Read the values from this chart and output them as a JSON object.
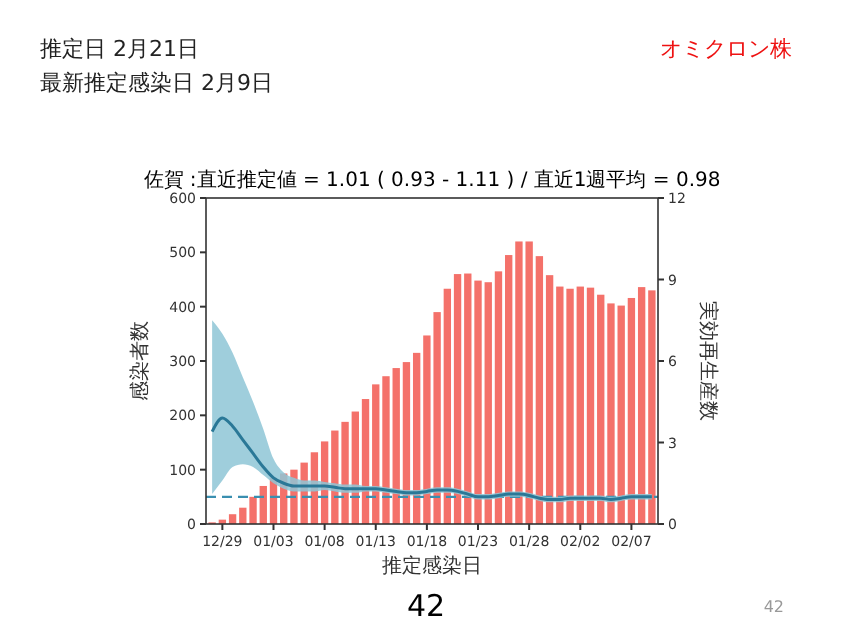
{
  "chart_data": {
    "type": "bar",
    "title": "佐賀 :直近推定値 = 1.01 ( 0.93 - 1.11 ) / 直近1週平均 = 0.98",
    "xlabel": "推定感染日",
    "ylabel": "感染者数",
    "y2label": "実効再生産数",
    "categories": [
      null,
      "12/29",
      null,
      null,
      null,
      null,
      "01/03",
      null,
      null,
      null,
      null,
      "01/08",
      null,
      null,
      null,
      null,
      "01/13",
      null,
      null,
      null,
      null,
      "01/18",
      null,
      null,
      null,
      null,
      "01/23",
      null,
      null,
      null,
      null,
      "01/28",
      null,
      null,
      null,
      null,
      "02/02",
      null,
      null,
      null,
      null,
      "02/07",
      null,
      null
    ],
    "series": [
      {
        "color": "#f4716a",
        "values": [
          3,
          8,
          18,
          30,
          50,
          70,
          85,
          93,
          100,
          113,
          132,
          152,
          172,
          188,
          207,
          230,
          257,
          272,
          287,
          298,
          315,
          347,
          390,
          433,
          460,
          461,
          448,
          445,
          465,
          495,
          520,
          520,
          493,
          458,
          437,
          433,
          437,
          435,
          422,
          406,
          402,
          416,
          436,
          430
        ]
      },
      {
        "type": "line",
        "axis": "y2",
        "color": "#2a7897",
        "values": [
          3.4,
          3.9,
          3.6,
          3.1,
          2.6,
          2.1,
          1.7,
          1.5,
          1.4,
          1.4,
          1.4,
          1.4,
          1.35,
          1.3,
          1.3,
          1.3,
          1.3,
          1.25,
          1.2,
          1.15,
          1.15,
          1.2,
          1.25,
          1.25,
          1.2,
          1.1,
          1.0,
          1.0,
          1.05,
          1.1,
          1.1,
          1.05,
          0.95,
          0.9,
          0.9,
          0.95,
          0.95,
          0.95,
          0.95,
          0.9,
          0.95,
          1.0,
          1.0,
          1.0
        ],
        "upper": [
          7.5,
          7.0,
          6.3,
          5.4,
          4.5,
          3.5,
          2.4,
          1.9,
          1.7,
          1.6,
          1.6,
          1.55,
          1.5,
          1.45,
          1.45,
          1.4,
          1.4,
          1.35,
          1.3,
          1.25,
          1.25,
          1.3,
          1.35,
          1.35,
          1.3,
          1.2,
          1.1,
          1.1,
          1.15,
          1.2,
          1.2,
          1.15,
          1.05,
          1.0,
          1.0,
          1.05,
          1.05,
          1.05,
          1.05,
          1.0,
          1.05,
          1.1,
          1.1,
          1.1
        ],
        "lower": [
          1.1,
          1.6,
          2.1,
          2.2,
          2.1,
          1.8,
          1.5,
          1.3,
          1.2,
          1.2,
          1.2,
          1.25,
          1.2,
          1.15,
          1.15,
          1.2,
          1.2,
          1.15,
          1.1,
          1.05,
          1.05,
          1.1,
          1.15,
          1.15,
          1.1,
          1.0,
          0.9,
          0.9,
          0.95,
          1.0,
          1.0,
          0.95,
          0.85,
          0.8,
          0.8,
          0.85,
          0.85,
          0.85,
          0.85,
          0.8,
          0.85,
          0.9,
          0.9,
          0.9
        ]
      }
    ],
    "ylim": [
      0,
      600
    ],
    "yticks": [
      0,
      100,
      200,
      300,
      400,
      500,
      600
    ],
    "y2lim": [
      0,
      12
    ],
    "y2ticks": [
      0,
      3,
      6,
      9,
      12
    ],
    "ref_lines": [
      {
        "axis": "y2",
        "value": 1,
        "color": "#3a8fb0",
        "line_style": "dashed"
      }
    ],
    "grid": false,
    "annotations": [
      "推定日  2月21日",
      "最新推定感染日  2月9日",
      "オミクロン株",
      "42",
      "42"
    ]
  }
}
